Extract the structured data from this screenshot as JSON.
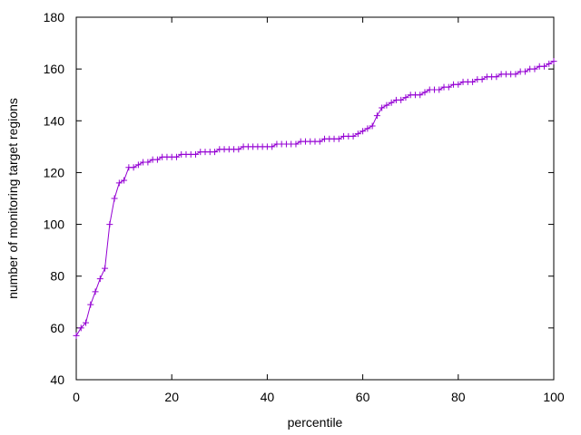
{
  "chart_data": {
    "type": "line",
    "title": "",
    "xlabel": "percentile",
    "ylabel": "number of monitoring target regions",
    "xlim": [
      0,
      100
    ],
    "ylim": [
      40,
      180
    ],
    "xticks": [
      0,
      20,
      40,
      60,
      80,
      100
    ],
    "yticks": [
      40,
      60,
      80,
      100,
      120,
      140,
      160,
      180
    ],
    "grid": false,
    "legend": "none",
    "marker": "plus",
    "series": [
      {
        "color": "#9400d3",
        "x": [
          0,
          1,
          2,
          3,
          4,
          5,
          6,
          7,
          8,
          9,
          10,
          11,
          12,
          13,
          14,
          15,
          16,
          17,
          18,
          19,
          20,
          21,
          22,
          23,
          24,
          25,
          26,
          27,
          28,
          29,
          30,
          31,
          32,
          33,
          34,
          35,
          36,
          37,
          38,
          39,
          40,
          41,
          42,
          43,
          44,
          45,
          46,
          47,
          48,
          49,
          50,
          51,
          52,
          53,
          54,
          55,
          56,
          57,
          58,
          59,
          60,
          61,
          62,
          63,
          64,
          65,
          66,
          67,
          68,
          69,
          70,
          71,
          72,
          73,
          74,
          75,
          76,
          77,
          78,
          79,
          80,
          81,
          82,
          83,
          84,
          85,
          86,
          87,
          88,
          89,
          90,
          91,
          92,
          93,
          94,
          95,
          96,
          97,
          98,
          99,
          100
        ],
        "y": [
          57,
          60,
          62,
          69,
          74,
          79,
          83,
          100,
          110,
          116,
          117,
          122,
          122,
          123,
          124,
          124,
          125,
          125,
          126,
          126,
          126,
          126,
          127,
          127,
          127,
          127,
          128,
          128,
          128,
          128,
          129,
          129,
          129,
          129,
          129,
          130,
          130,
          130,
          130,
          130,
          130,
          130,
          131,
          131,
          131,
          131,
          131,
          132,
          132,
          132,
          132,
          132,
          133,
          133,
          133,
          133,
          134,
          134,
          134,
          135,
          136,
          137,
          138,
          142,
          145,
          146,
          147,
          148,
          148,
          149,
          150,
          150,
          150,
          151,
          152,
          152,
          152,
          153,
          153,
          154,
          154,
          155,
          155,
          155,
          156,
          156,
          157,
          157,
          157,
          158,
          158,
          158,
          158,
          159,
          159,
          160,
          160,
          161,
          161,
          162,
          163
        ]
      }
    ]
  }
}
